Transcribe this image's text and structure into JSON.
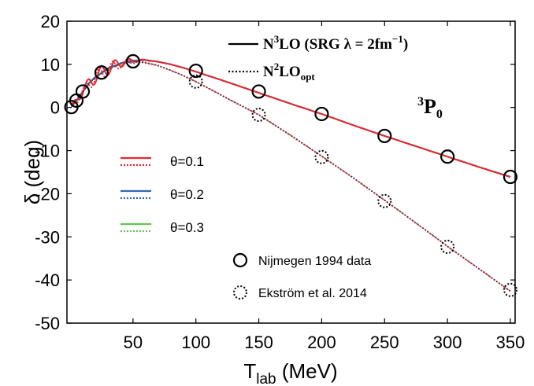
{
  "chart_data": {
    "type": "line",
    "xlabel": "T",
    "xlabel_sub": "lab",
    "xlabel_unit": " (MeV)",
    "ylabel": "δ (deg)",
    "xlim": [
      0,
      350
    ],
    "ylim": [
      -50,
      20
    ],
    "xticks": [
      50,
      100,
      150,
      200,
      250,
      300,
      350
    ],
    "yticks": [
      20,
      10,
      0,
      -10,
      -20,
      -30,
      -40,
      -50
    ],
    "ytick_labels": [
      "20",
      "10",
      "0",
      "-10",
      "-20",
      "-30",
      "-40",
      "-50"
    ],
    "partial_wave": {
      "sup": "3",
      "main": "P",
      "sub": "0"
    },
    "legend_top": [
      {
        "label_main": "N",
        "label_sup": "3",
        "label_rest": "LO (SRG λ = 2fm",
        "label_sup2": "−1",
        "label_end": ")",
        "style": "solid"
      },
      {
        "label_main": "N",
        "label_sup": "2",
        "label_rest": "LO",
        "label_sub": "opt",
        "style": "dotted"
      }
    ],
    "legend_theta": [
      {
        "label": "θ=0.1",
        "color": "#e8262d"
      },
      {
        "label": "θ=0.2",
        "color": "#3463b4"
      },
      {
        "label": "θ=0.3",
        "color": "#62c452"
      }
    ],
    "legend_data": [
      {
        "label": "Nijmegen 1994 data",
        "style": "solid"
      },
      {
        "label": "Ekström et al. 2014",
        "style": "dotted"
      }
    ],
    "series": [
      {
        "name": "N³LO (SRG λ = 2fm⁻¹)",
        "style": "solid",
        "x": [
          1,
          5,
          10,
          15,
          20,
          25,
          30,
          40,
          50,
          60,
          70,
          80,
          90,
          100,
          125,
          150,
          175,
          200,
          225,
          250,
          275,
          300,
          325,
          350
        ],
        "y": [
          0.2,
          1.6,
          3.7,
          5.6,
          7.0,
          8.1,
          9.0,
          10.3,
          10.9,
          11.0,
          10.6,
          10.0,
          9.2,
          8.3,
          5.9,
          3.4,
          0.9,
          -1.5,
          -4.1,
          -6.6,
          -9.0,
          -11.4,
          -13.8,
          -16.1
        ]
      },
      {
        "name": "N²LO_opt",
        "style": "dotted",
        "x": [
          1,
          5,
          10,
          15,
          20,
          25,
          30,
          40,
          50,
          60,
          70,
          80,
          90,
          100,
          125,
          150,
          175,
          200,
          225,
          250,
          275,
          300,
          325,
          350
        ],
        "y": [
          0.2,
          1.5,
          3.6,
          5.5,
          6.9,
          8.0,
          8.9,
          10.1,
          10.6,
          10.4,
          9.7,
          8.6,
          7.4,
          6.0,
          2.1,
          -1.7,
          -6.4,
          -11.3,
          -16.3,
          -21.5,
          -26.8,
          -32.2,
          -37.4,
          -42.6
        ]
      }
    ],
    "data_points": [
      {
        "name": "Nijmegen 1994 data",
        "style": "solid",
        "x": [
          1,
          5,
          10,
          25,
          50,
          100,
          150,
          200,
          250,
          300,
          350
        ],
        "y": [
          0.1,
          1.6,
          3.7,
          8.1,
          10.7,
          8.5,
          3.7,
          -1.5,
          -6.6,
          -11.4,
          -16.1
        ]
      },
      {
        "name": "Ekström et al. 2014",
        "style": "dotted",
        "x": [
          100,
          150,
          200,
          250,
          300,
          350
        ],
        "y": [
          6.0,
          -1.7,
          -11.5,
          -21.7,
          -32.3,
          -42.3
        ]
      }
    ]
  }
}
